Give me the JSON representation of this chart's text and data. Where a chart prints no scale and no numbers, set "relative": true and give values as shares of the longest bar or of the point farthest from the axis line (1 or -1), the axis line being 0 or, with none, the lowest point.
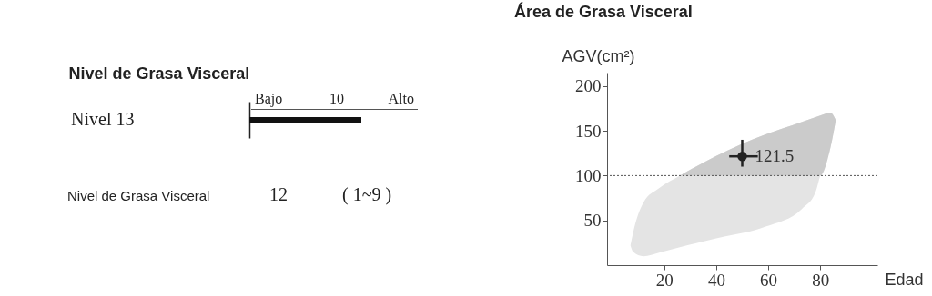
{
  "chart_data": [
    {
      "type": "bar",
      "orientation": "horizontal",
      "relative": true,
      "title": "Nivel de Grasa Visceral",
      "categories": [
        "Nivel 13"
      ],
      "values": [
        1
      ],
      "color": "#111111",
      "annotations": [
        "Bajo",
        "10",
        "Alto",
        "Nivel de Grasa Visceral",
        "12",
        "(  1~9  )"
      ]
    },
    {
      "type": "scatter",
      "title": "Área de Grasa Visceral",
      "xlabel": "Edad",
      "ylabel": "AGV(cm²)",
      "xlim": [
        -2,
        102
      ],
      "ylim": [
        0,
        215
      ],
      "xticks": [
        20,
        40,
        60,
        80
      ],
      "yticks": [
        50,
        100,
        150,
        200
      ],
      "ref_lines": [
        {
          "axis": "y",
          "value": 100,
          "line_style": "dotted",
          "color": "#555555"
        }
      ],
      "series": [
        {
          "type": "line",
          "color": "#e4e4e4",
          "x": [
            7,
            8,
            12,
            18,
            26,
            40,
            59,
            73,
            78,
            80,
            84,
            86
          ],
          "values": [
            null,
            null,
            null,
            null,
            null,
            null,
            null,
            null,
            null,
            null,
            null,
            null
          ],
          "upper": [
            22,
            36,
            70,
            86,
            100,
            122,
            146,
            160,
            165,
            167,
            170,
            162
          ],
          "lower": [
            22,
            15,
            10,
            14,
            20,
            30,
            43,
            63,
            80,
            100,
            132,
            162
          ]
        },
        {
          "type": "line",
          "color": "#cbcbcb",
          "x": [
            26,
            40,
            59,
            73,
            78,
            80,
            84,
            86
          ],
          "values": [
            null,
            null,
            null,
            null,
            null,
            null,
            null,
            null
          ],
          "upper": [
            100,
            122,
            146,
            160,
            165,
            167,
            170,
            162
          ],
          "lower": [
            100,
            100,
            100,
            100,
            100,
            100,
            132,
            162
          ]
        },
        {
          "type": "scatter",
          "marker": "circle",
          "color": "#222222",
          "x": [
            50
          ],
          "values": [
            121.5
          ],
          "errors": [
            [
              110,
              140
            ]
          ],
          "xerrors": [
            [
              45,
              56
            ]
          ],
          "value_labels": [
            "121.5"
          ]
        }
      ]
    }
  ]
}
